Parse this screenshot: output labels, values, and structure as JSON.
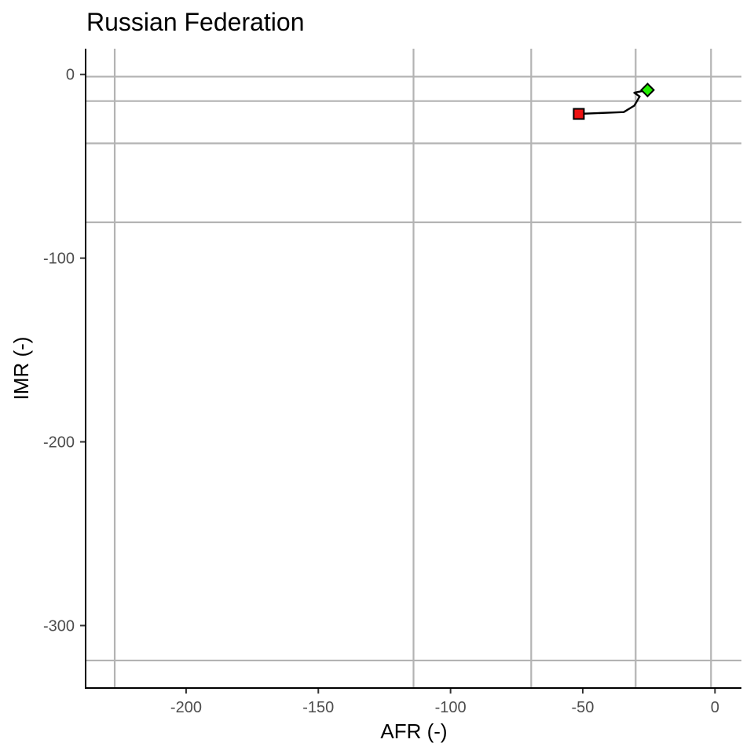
{
  "chart_data": {
    "type": "line",
    "title": "Russian Federation",
    "xlabel": "AFR (-)",
    "ylabel": "IMR (-)",
    "xlim": [
      -238,
      10
    ],
    "ylim": [
      -334,
      14
    ],
    "x_ticks": [
      -200,
      -150,
      -100,
      -50,
      0
    ],
    "y_ticks": [
      -300,
      -200,
      -100,
      0
    ],
    "x_tick_labels": [
      "-200",
      "-150",
      "-100",
      "-50",
      "0"
    ],
    "y_tick_labels": [
      "-300",
      "-200",
      "-100",
      "0"
    ],
    "grid": true,
    "reference_lines": {
      "vertical_x": [
        -227,
        -114,
        -69.5,
        -30,
        -1.5
      ],
      "horizontal_y": [
        -1.2,
        -14.5,
        -37.5,
        -80.5,
        -319
      ]
    },
    "series": [
      {
        "x": [
          -51.5,
          -34.5,
          -30.5,
          -29.5,
          -28.5,
          -30.5,
          -25.5
        ],
        "y": [
          -21.5,
          -20.5,
          -17,
          -14.5,
          -12,
          -10,
          -8.5
        ]
      }
    ],
    "start_point": {
      "x": -51.5,
      "y": -21.5,
      "marker": "square",
      "color": "#ee1111"
    },
    "end_point": {
      "x": -25.5,
      "y": -8.5,
      "marker": "diamond",
      "color": "#22ee00"
    },
    "legend": "none"
  }
}
